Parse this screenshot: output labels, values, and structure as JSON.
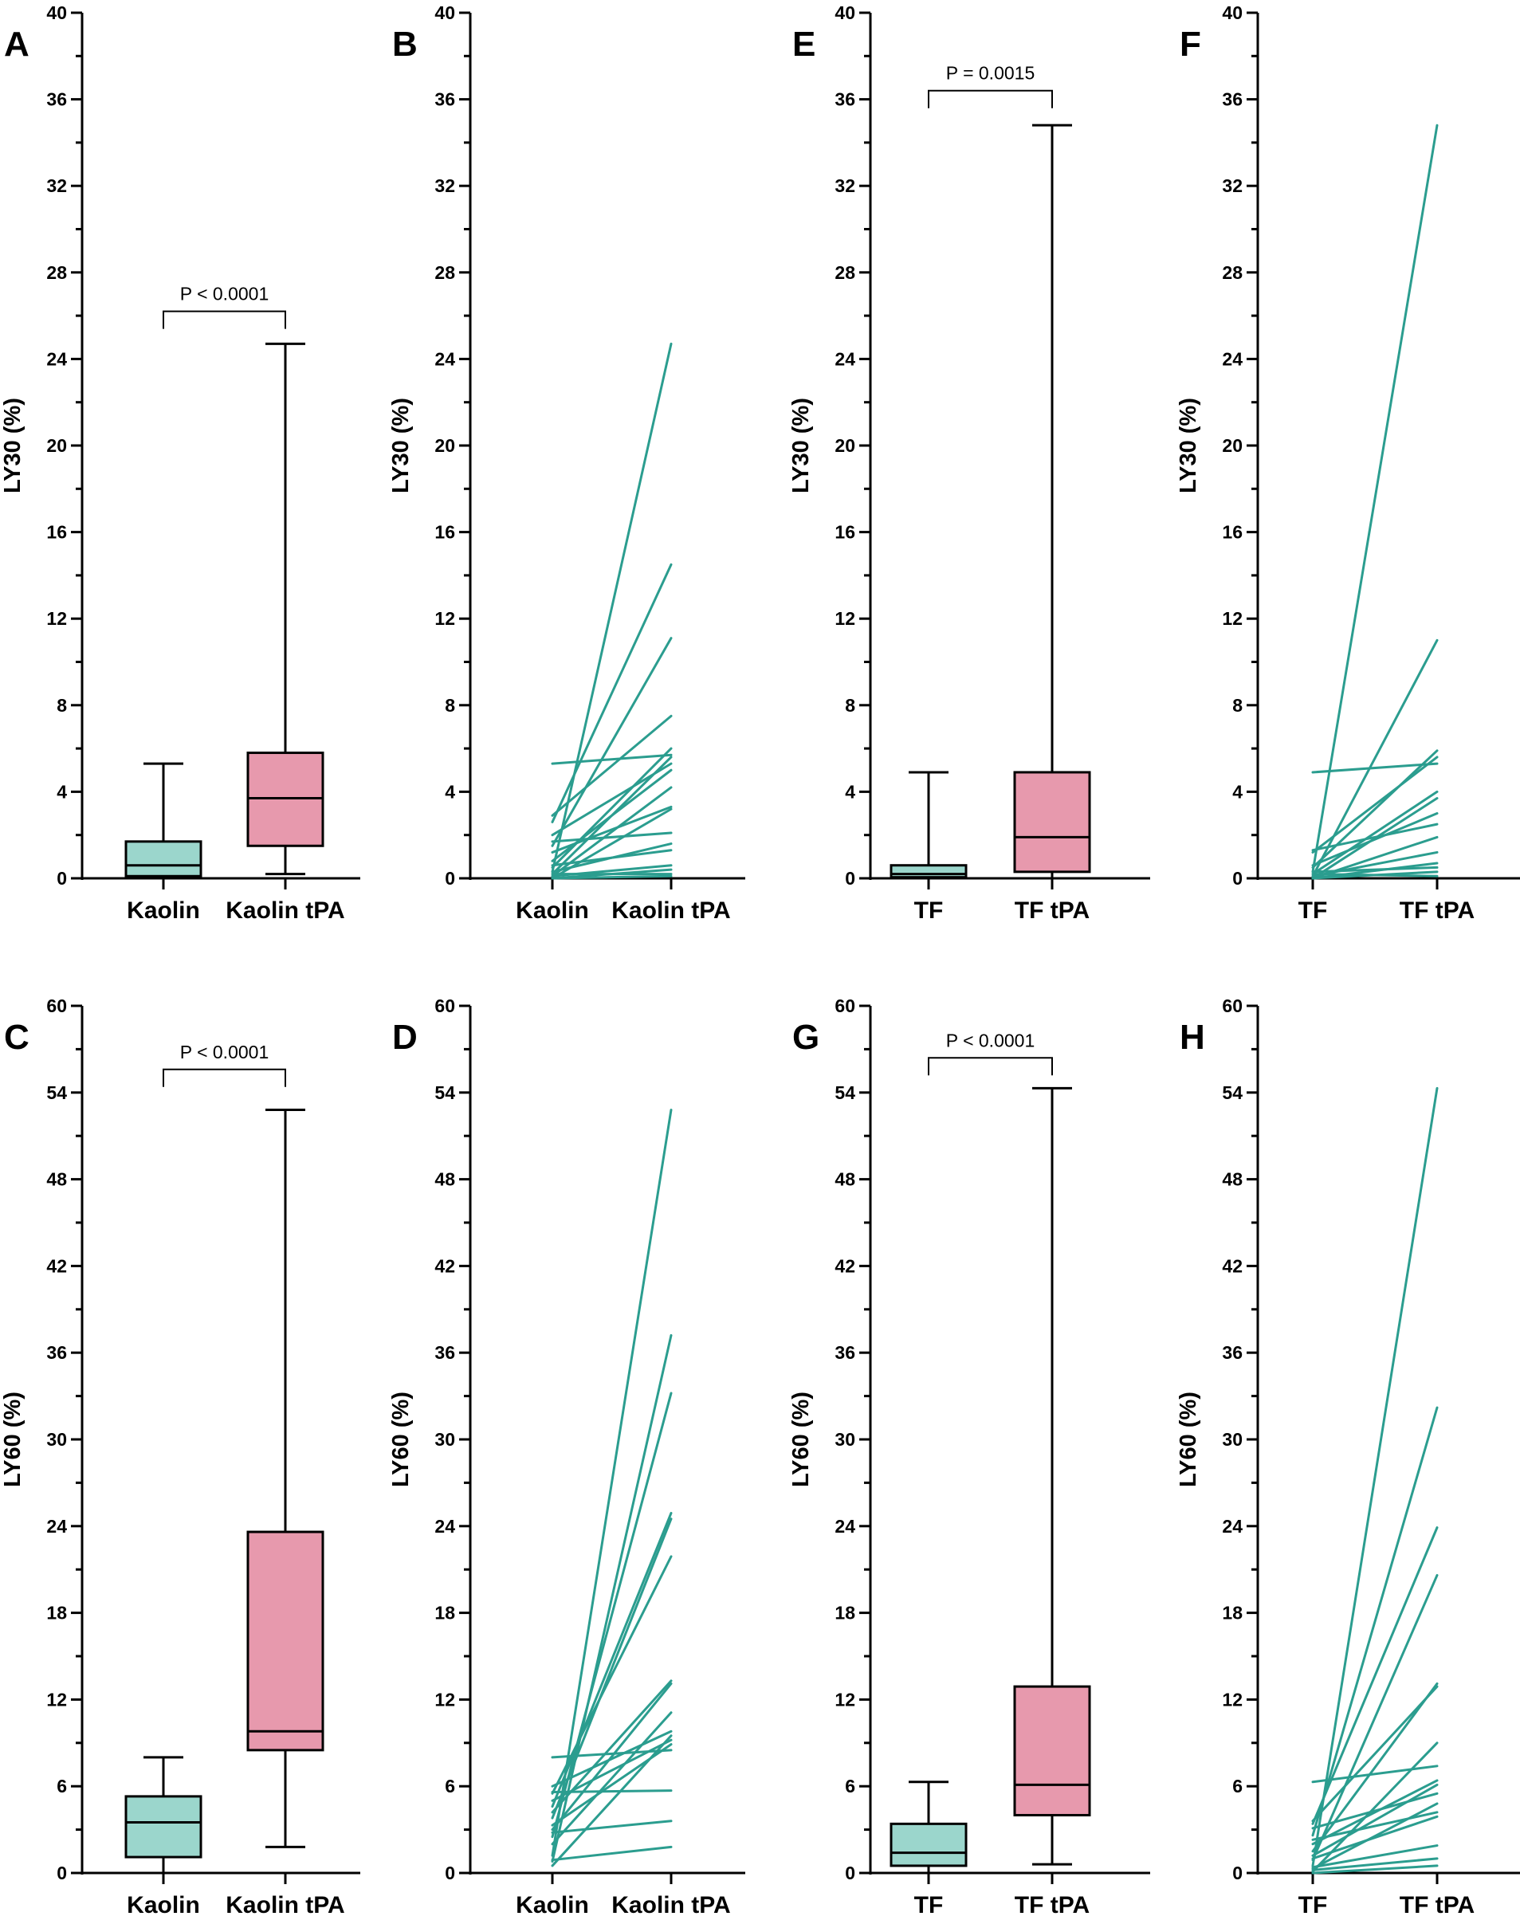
{
  "colors": {
    "paired_line": "#2b9d8f",
    "box_fill_control": "#9bd6cc",
    "box_fill_tpa": "#e799ad",
    "axis": "#000000"
  },
  "chart_data": [
    {
      "id": "A",
      "letter": "A",
      "type": "box",
      "ylabel": "LY30 (%)",
      "ylim": [
        0,
        40
      ],
      "ytick_step": 4,
      "minor_step": 2,
      "categories": [
        "Kaolin",
        "Kaolin tPA"
      ],
      "boxes": [
        {
          "min": 0.0,
          "q1": 0.1,
          "median": 0.6,
          "q3": 1.7,
          "max": 5.3
        },
        {
          "min": 0.2,
          "q1": 1.5,
          "median": 3.7,
          "q3": 5.8,
          "max": 24.7
        }
      ],
      "p_value": "P < 0.0001",
      "bracket_y": 26.2
    },
    {
      "id": "B",
      "letter": "B",
      "type": "paired_lines",
      "ylabel": "LY30 (%)",
      "ylim": [
        0,
        40
      ],
      "ytick_step": 4,
      "minor_step": 2,
      "categories": [
        "Kaolin",
        "Kaolin tPA"
      ],
      "pairs": [
        [
          0.3,
          24.7
        ],
        [
          2.6,
          14.5
        ],
        [
          1.5,
          11.1
        ],
        [
          2.9,
          7.5
        ],
        [
          5.3,
          5.7
        ],
        [
          0.5,
          6.0
        ],
        [
          0.2,
          5.6
        ],
        [
          2.0,
          5.3
        ],
        [
          0.8,
          5.0
        ],
        [
          0.1,
          4.2
        ],
        [
          1.2,
          3.3
        ],
        [
          0.0,
          3.2
        ],
        [
          1.7,
          2.1
        ],
        [
          0.3,
          1.6
        ],
        [
          0.6,
          1.3
        ],
        [
          0.1,
          0.6
        ],
        [
          0.0,
          0.4
        ],
        [
          0.2,
          0.2
        ],
        [
          0.0,
          0.1
        ]
      ]
    },
    {
      "id": "C",
      "letter": "C",
      "type": "box",
      "ylabel": "LY60 (%)",
      "ylim": [
        0,
        60
      ],
      "ytick_step": 6,
      "minor_step": 3,
      "categories": [
        "Kaolin",
        "Kaolin tPA"
      ],
      "boxes": [
        {
          "min": 0.0,
          "q1": 1.1,
          "median": 3.5,
          "q3": 5.3,
          "max": 8.0
        },
        {
          "min": 1.8,
          "q1": 8.5,
          "median": 9.8,
          "q3": 23.6,
          "max": 52.8
        }
      ],
      "p_value": "P < 0.0001",
      "bracket_y": 55.6
    },
    {
      "id": "D",
      "letter": "D",
      "type": "paired_lines",
      "ylabel": "LY60 (%)",
      "ylim": [
        0,
        60
      ],
      "ytick_step": 6,
      "minor_step": 3,
      "categories": [
        "Kaolin",
        "Kaolin tPA"
      ],
      "pairs": [
        [
          1.2,
          52.8
        ],
        [
          0.8,
          37.2
        ],
        [
          2.5,
          33.2
        ],
        [
          4.6,
          24.9
        ],
        [
          3.8,
          24.5
        ],
        [
          5.5,
          21.9
        ],
        [
          4.2,
          13.3
        ],
        [
          3.0,
          13.1
        ],
        [
          2.0,
          11.1
        ],
        [
          6.0,
          9.8
        ],
        [
          0.5,
          9.5
        ],
        [
          5.0,
          9.2
        ],
        [
          3.3,
          8.9
        ],
        [
          8.0,
          8.5
        ],
        [
          5.6,
          5.7
        ],
        [
          2.8,
          3.6
        ],
        [
          0.9,
          1.8
        ]
      ]
    },
    {
      "id": "E",
      "letter": "E",
      "type": "box",
      "ylabel": "LY30 (%)",
      "ylim": [
        0,
        40
      ],
      "ytick_step": 4,
      "minor_step": 2,
      "categories": [
        "TF",
        "TF tPA"
      ],
      "boxes": [
        {
          "min": 0.0,
          "q1": 0.05,
          "median": 0.2,
          "q3": 0.6,
          "max": 4.9
        },
        {
          "min": 0.0,
          "q1": 0.3,
          "median": 1.9,
          "q3": 4.9,
          "max": 34.8
        }
      ],
      "p_value": "P = 0.0015",
      "bracket_y": 36.4
    },
    {
      "id": "F",
      "letter": "F",
      "type": "paired_lines",
      "ylabel": "LY30 (%)",
      "ylim": [
        0,
        40
      ],
      "ytick_step": 4,
      "minor_step": 2,
      "categories": [
        "TF",
        "TF tPA"
      ],
      "pairs": [
        [
          0.3,
          34.8
        ],
        [
          0.1,
          11.0
        ],
        [
          0.5,
          5.9
        ],
        [
          4.9,
          5.3
        ],
        [
          1.2,
          5.6
        ],
        [
          0.2,
          4.0
        ],
        [
          0.0,
          3.7
        ],
        [
          0.6,
          3.0
        ],
        [
          1.3,
          2.5
        ],
        [
          0.0,
          1.9
        ],
        [
          0.1,
          1.2
        ],
        [
          0.0,
          0.7
        ],
        [
          0.3,
          0.5
        ],
        [
          0.0,
          0.3
        ],
        [
          0.2,
          0.1
        ]
      ]
    },
    {
      "id": "G",
      "letter": "G",
      "type": "box",
      "ylabel": "LY60 (%)",
      "ylim": [
        0,
        60
      ],
      "ytick_step": 6,
      "minor_step": 3,
      "categories": [
        "TF",
        "TF tPA"
      ],
      "boxes": [
        {
          "min": 0.0,
          "q1": 0.5,
          "median": 1.4,
          "q3": 3.4,
          "max": 6.3
        },
        {
          "min": 0.6,
          "q1": 4.0,
          "median": 6.1,
          "q3": 12.9,
          "max": 54.3
        }
      ],
      "p_value": "P < 0.0001",
      "bracket_y": 56.4
    },
    {
      "id": "H",
      "letter": "H",
      "type": "paired_lines",
      "ylabel": "LY60 (%)",
      "ylim": [
        0,
        60
      ],
      "ytick_step": 6,
      "minor_step": 3,
      "categories": [
        "TF",
        "TF tPA"
      ],
      "pairs": [
        [
          0.5,
          54.3
        ],
        [
          2.6,
          32.2
        ],
        [
          3.4,
          23.9
        ],
        [
          0.9,
          20.6
        ],
        [
          1.5,
          13.1
        ],
        [
          3.6,
          12.9
        ],
        [
          0.1,
          9.0
        ],
        [
          6.3,
          7.4
        ],
        [
          2.0,
          6.4
        ],
        [
          1.2,
          6.1
        ],
        [
          3.1,
          5.5
        ],
        [
          0.3,
          4.8
        ],
        [
          2.3,
          4.2
        ],
        [
          1.0,
          3.9
        ],
        [
          0.4,
          1.9
        ],
        [
          0.2,
          1.0
        ],
        [
          0.0,
          0.5
        ]
      ]
    }
  ]
}
